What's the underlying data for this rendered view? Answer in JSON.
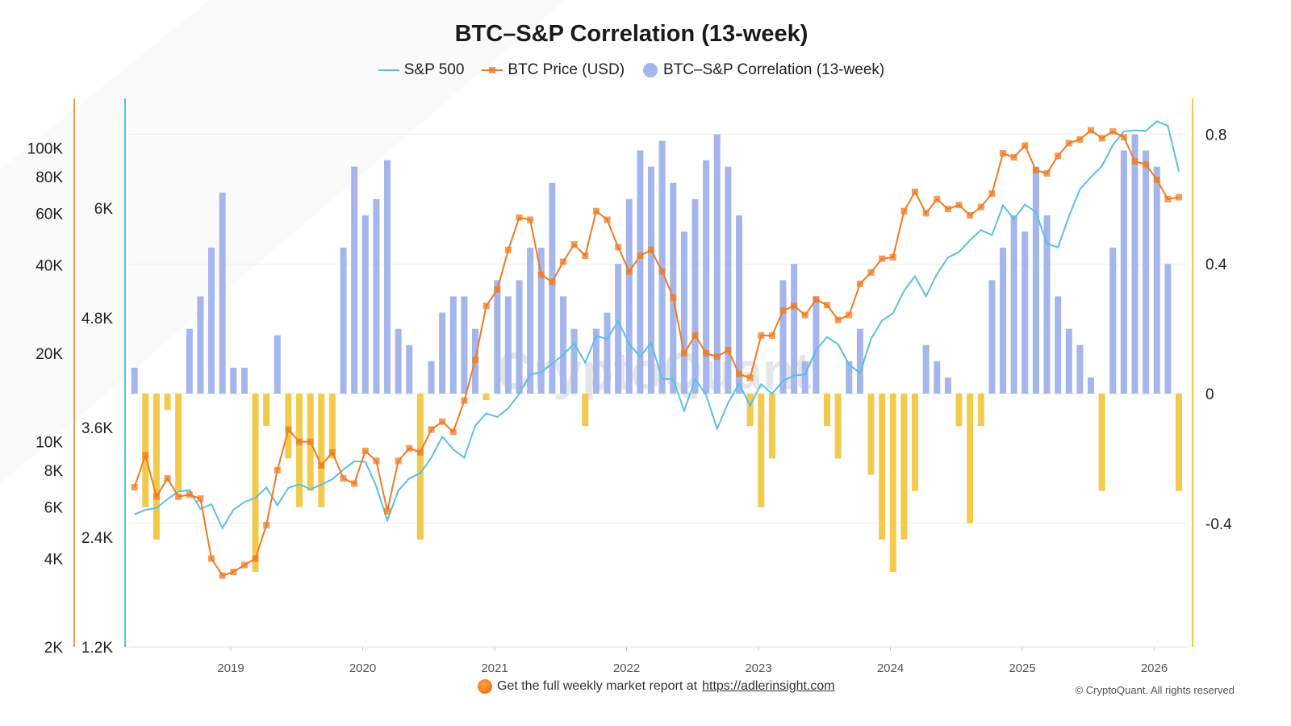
{
  "chart_data": {
    "type": "bar+line",
    "title": "BTC–S&P Correlation (13-week)",
    "legend": {
      "placement": "top-center",
      "entries": [
        "S&P 500",
        "BTC Price (USD)",
        "BTC–S&P Correlation (13-week)"
      ]
    },
    "colors": {
      "sp500": "#5bbfe6",
      "btc": "#f07b22",
      "corr_positive": "#a4b6ec",
      "corr_negative": "#f2cb4c"
    },
    "axes": {
      "btc": {
        "scale": "log",
        "range": [
          2000,
          130000
        ],
        "ticks": [
          {
            "v": 2000,
            "label": "2K"
          },
          {
            "v": 4000,
            "label": "4K"
          },
          {
            "v": 6000,
            "label": "6K"
          },
          {
            "v": 8000,
            "label": "8K"
          },
          {
            "v": 10000,
            "label": "10K"
          },
          {
            "v": 20000,
            "label": "20K"
          },
          {
            "v": 40000,
            "label": "40K"
          },
          {
            "v": 60000,
            "label": "60K"
          },
          {
            "v": 80000,
            "label": "80K"
          },
          {
            "v": 100000,
            "label": "100K"
          }
        ]
      },
      "sp500": {
        "scale": "linear",
        "range": [
          1200,
          7200
        ],
        "ticks": [
          {
            "v": 1200,
            "label": "1.2K"
          },
          {
            "v": 2400,
            "label": "2.4K"
          },
          {
            "v": 3600,
            "label": "3.6K"
          },
          {
            "v": 4800,
            "label": "4.8K"
          },
          {
            "v": 6000,
            "label": "6K"
          }
        ]
      },
      "corr": {
        "scale": "linear",
        "range": [
          -0.78,
          0.9
        ],
        "ticks": [
          {
            "v": 0.8,
            "label": "0.8"
          },
          {
            "v": 0.4,
            "label": "0.4"
          },
          {
            "v": 0,
            "label": "0"
          },
          {
            "v": -0.4,
            "label": "-0.4"
          }
        ]
      },
      "x": {
        "ticks": [
          "2019",
          "2020",
          "2021",
          "2022",
          "2023",
          "2024",
          "2025",
          "2026"
        ]
      }
    },
    "grid": true,
    "dates": [
      "2018-04",
      "2018-05",
      "2018-06",
      "2018-07",
      "2018-08",
      "2018-09",
      "2018-10",
      "2018-11",
      "2018-12",
      "2019-01",
      "2019-02",
      "2019-03",
      "2019-04",
      "2019-05",
      "2019-06",
      "2019-07",
      "2019-08",
      "2019-09",
      "2019-10",
      "2019-11",
      "2019-12",
      "2020-01",
      "2020-02",
      "2020-03",
      "2020-04",
      "2020-05",
      "2020-06",
      "2020-07",
      "2020-08",
      "2020-09",
      "2020-10",
      "2020-11",
      "2020-12",
      "2021-01",
      "2021-02",
      "2021-03",
      "2021-04",
      "2021-05",
      "2021-06",
      "2021-07",
      "2021-08",
      "2021-09",
      "2021-10",
      "2021-11",
      "2021-12",
      "2022-01",
      "2022-02",
      "2022-03",
      "2022-04",
      "2022-05",
      "2022-06",
      "2022-07",
      "2022-08",
      "2022-09",
      "2022-10",
      "2022-11",
      "2022-12",
      "2023-01",
      "2023-02",
      "2023-03",
      "2023-04",
      "2023-05",
      "2023-06",
      "2023-07",
      "2023-08",
      "2023-09",
      "2023-10",
      "2023-11",
      "2023-12",
      "2024-01",
      "2024-02",
      "2024-03",
      "2024-04",
      "2024-05",
      "2024-06",
      "2024-07",
      "2024-08",
      "2024-09",
      "2024-10",
      "2024-11",
      "2024-12",
      "2025-01",
      "2025-02",
      "2025-03",
      "2025-04",
      "2025-05",
      "2025-06",
      "2025-07",
      "2025-08",
      "2025-09",
      "2025-10",
      "2025-11",
      "2025-12",
      "2026-01",
      "2026-02",
      "2026-03"
    ],
    "series": [
      {
        "name": "S&P 500",
        "values": [
          2650,
          2700,
          2720,
          2815,
          2900,
          2915,
          2710,
          2760,
          2500,
          2700,
          2785,
          2830,
          2945,
          2750,
          2940,
          2980,
          2925,
          2975,
          3035,
          3140,
          3230,
          3225,
          2955,
          2585,
          2910,
          3045,
          3100,
          3270,
          3500,
          3360,
          3270,
          3620,
          3755,
          3715,
          3810,
          3970,
          4180,
          4205,
          4300,
          4395,
          4520,
          4310,
          4600,
          4570,
          4765,
          4515,
          4375,
          4530,
          4130,
          4130,
          3785,
          4130,
          3955,
          3585,
          3870,
          4080,
          3840,
          4075,
          3970,
          4110,
          4170,
          4180,
          4450,
          4590,
          4510,
          4290,
          4195,
          4570,
          4770,
          4850,
          5095,
          5255,
          5035,
          5280,
          5460,
          5520,
          5650,
          5760,
          5705,
          6030,
          5880,
          6040,
          5955,
          5610,
          5570,
          5910,
          6205,
          6340,
          6460,
          6690,
          6840,
          6850,
          6845,
          6950,
          6900,
          6400
        ]
      },
      {
        "name": "BTC Price (USD)",
        "values": [
          7000,
          9000,
          6500,
          7500,
          6500,
          6600,
          6400,
          4000,
          3500,
          3600,
          3800,
          4000,
          5200,
          8000,
          11000,
          10000,
          10000,
          8300,
          9200,
          7500,
          7200,
          9300,
          8600,
          5800,
          8600,
          9500,
          9200,
          11000,
          11700,
          10800,
          13800,
          19000,
          29000,
          33000,
          45000,
          58000,
          57000,
          37000,
          35000,
          41000,
          47000,
          43000,
          61000,
          57000,
          46000,
          38000,
          43000,
          45000,
          38000,
          31000,
          20000,
          23000,
          20000,
          19500,
          20500,
          17000,
          16500,
          23000,
          23000,
          28000,
          29000,
          27000,
          30500,
          29200,
          26000,
          27000,
          34500,
          37700,
          42000,
          42500,
          61000,
          71000,
          60000,
          67000,
          62000,
          64000,
          59000,
          63000,
          70000,
          96000,
          93000,
          102000,
          84000,
          82000,
          94000,
          104000,
          107000,
          115000,
          108000,
          114000,
          109000,
          90000,
          88000,
          78000,
          67000,
          68000
        ]
      },
      {
        "name": "BTC–S&P Correlation (13-week)",
        "values": [
          0.08,
          -0.35,
          -0.45,
          -0.05,
          -0.3,
          0.2,
          0.3,
          0.45,
          0.62,
          0.08,
          0.08,
          -0.55,
          -0.1,
          0.18,
          -0.2,
          -0.35,
          -0.3,
          -0.35,
          -0.2,
          0.45,
          0.7,
          0.55,
          0.6,
          0.72,
          0.2,
          0.15,
          -0.45,
          0.1,
          0.25,
          0.3,
          0.3,
          0.2,
          -0.02,
          0.35,
          0.3,
          0.35,
          0.45,
          0.45,
          0.65,
          0.3,
          0.2,
          -0.1,
          0.2,
          0.25,
          0.4,
          0.6,
          0.75,
          0.7,
          0.78,
          0.65,
          0.5,
          0.6,
          0.72,
          0.8,
          0.7,
          0.55,
          -0.1,
          -0.35,
          -0.2,
          0.35,
          0.4,
          0.1,
          0.3,
          -0.1,
          -0.2,
          0.1,
          0.2,
          -0.25,
          -0.45,
          -0.55,
          -0.45,
          -0.3,
          0.15,
          0.1,
          0.05,
          -0.1,
          -0.4,
          -0.1,
          0.35,
          0.45,
          0.55,
          0.5,
          0.7,
          0.55,
          0.3,
          0.2,
          0.15,
          0.05,
          -0.3,
          0.45,
          0.75,
          0.8,
          0.75,
          0.7,
          0.4,
          -0.3
        ]
      }
    ]
  },
  "watermark": "CryptoQuant",
  "footer": {
    "text": "Get the full weekly market report at",
    "link": "https://adlerinsight.com",
    "copyright": "© CryptoQuant. All rights reserved"
  }
}
